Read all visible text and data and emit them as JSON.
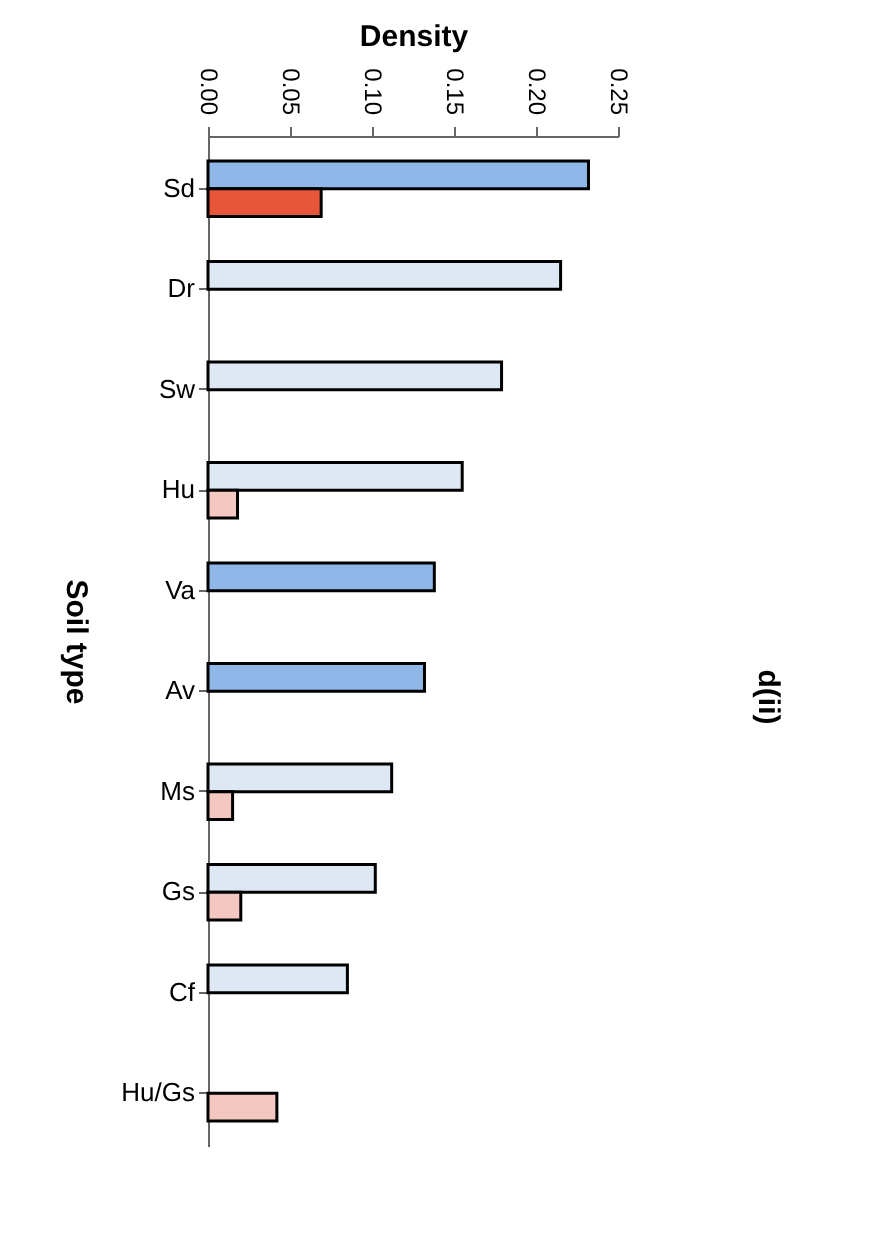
{
  "chart_data": {
    "type": "bar",
    "orientation": "horizontal",
    "xlabel": "Density",
    "ylabel": "Soil type",
    "annotations": [
      "d(ii)"
    ],
    "categories": [
      "Sd",
      "Dr",
      "Sw",
      "Hu",
      "Va",
      "Av",
      "Ms",
      "Gs",
      "Cf",
      "Hu/Gs"
    ],
    "series": [
      {
        "colors": [
          "#8fb8e8",
          "#dde8f4",
          "#dde8f4",
          "#dde8f4",
          "#8fb8e8",
          "#8fb8e8",
          "#dde8f4",
          "#dde8f4",
          "#dde8f4",
          null
        ],
        "values": [
          0.232,
          0.215,
          0.179,
          0.155,
          0.138,
          0.132,
          0.112,
          0.102,
          0.085,
          null
        ]
      },
      {
        "colors": [
          "#e8563a",
          null,
          null,
          "#f4c8c0",
          null,
          null,
          "#f4c8c0",
          "#f4c8c0",
          null,
          "#f4c8c0"
        ],
        "values": [
          0.069,
          null,
          null,
          0.018,
          null,
          null,
          0.015,
          0.02,
          null,
          0.042
        ]
      }
    ],
    "xlim": [
      0,
      0.25
    ],
    "xticks": [
      {
        "value": 0,
        "label": "0.00"
      },
      {
        "value": 0.05,
        "label": "0.05"
      },
      {
        "value": 0.1,
        "label": "0.10"
      },
      {
        "value": 0.15,
        "label": "0.15"
      },
      {
        "value": 0.2,
        "label": "0.20"
      },
      {
        "value": 0.25,
        "label": "0.25"
      }
    ],
    "grid": false
  }
}
